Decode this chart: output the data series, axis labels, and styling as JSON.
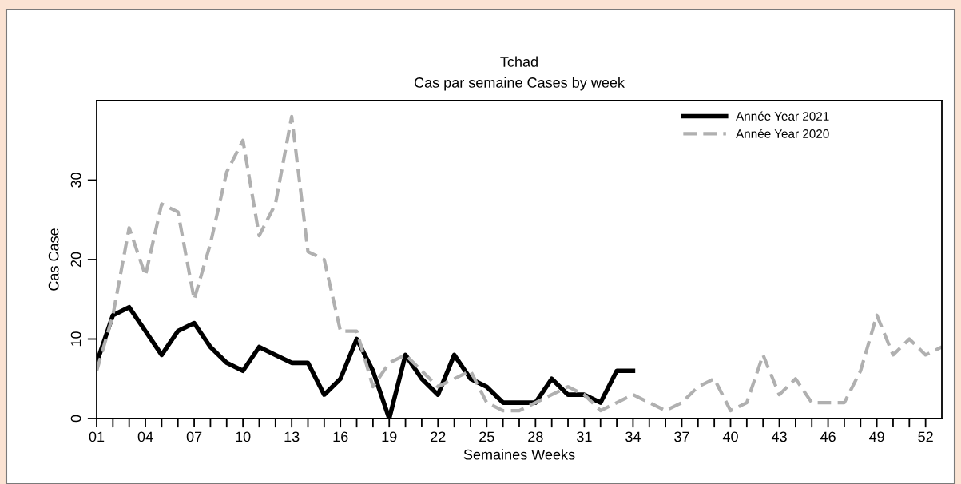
{
  "chart_data": {
    "type": "line",
    "title": "Tchad",
    "subtitle": "Cas par semaine Cases by week",
    "xlabel": "Semaines Weeks",
    "ylabel": "Cas Case",
    "x": [
      1,
      2,
      3,
      4,
      5,
      6,
      7,
      8,
      9,
      10,
      11,
      12,
      13,
      14,
      15,
      16,
      17,
      18,
      19,
      20,
      21,
      22,
      23,
      24,
      25,
      26,
      27,
      28,
      29,
      30,
      31,
      32,
      33,
      34,
      35,
      36,
      37,
      38,
      39,
      40,
      41,
      42,
      43,
      44,
      45,
      46,
      47,
      48,
      49,
      50,
      51,
      52,
      53
    ],
    "series": [
      {
        "name": "Année Year 2021",
        "color": "#000000",
        "line_style": "solid",
        "x": [
          1,
          2,
          3,
          4,
          5,
          6,
          7,
          8,
          9,
          10,
          11,
          12,
          13,
          14,
          15,
          16,
          17,
          18,
          19,
          20,
          21,
          22,
          23,
          24,
          25,
          26,
          27,
          28,
          29,
          30,
          31,
          32,
          33,
          34
        ],
        "values": [
          7,
          13,
          14,
          11,
          8,
          11,
          12,
          9,
          7,
          6,
          9,
          8,
          7,
          7,
          3,
          5,
          10,
          6,
          0,
          8,
          5,
          3,
          8,
          5,
          4,
          2,
          2,
          2,
          5,
          3,
          3,
          2,
          6,
          6
        ]
      },
      {
        "name": "Année Year 2020",
        "color": "#b0b0b0",
        "line_style": "dashed",
        "values": [
          6,
          13,
          24,
          18,
          27,
          26,
          15,
          22,
          31,
          35,
          23,
          27,
          38,
          21,
          20,
          11,
          11,
          4,
          7,
          8,
          6,
          4,
          5,
          6,
          2,
          1,
          1,
          2,
          3,
          4,
          3,
          1,
          2,
          3,
          2,
          1,
          2,
          4,
          5,
          1,
          2,
          8,
          3,
          5,
          2,
          2,
          2,
          6,
          13,
          8,
          10,
          8,
          9
        ]
      }
    ],
    "xlim": [
      1,
      53
    ],
    "ylim": [
      0,
      40
    ],
    "xticks": [
      {
        "value": 1,
        "label": "01"
      },
      {
        "value": 2,
        "label": null
      },
      {
        "value": 3,
        "label": null
      },
      {
        "value": 4,
        "label": "04"
      },
      {
        "value": 5,
        "label": null
      },
      {
        "value": 6,
        "label": null
      },
      {
        "value": 7,
        "label": "07"
      },
      {
        "value": 8,
        "label": null
      },
      {
        "value": 9,
        "label": null
      },
      {
        "value": 10,
        "label": "10"
      },
      {
        "value": 11,
        "label": null
      },
      {
        "value": 12,
        "label": null
      },
      {
        "value": 13,
        "label": "13"
      },
      {
        "value": 14,
        "label": null
      },
      {
        "value": 15,
        "label": null
      },
      {
        "value": 16,
        "label": "16"
      },
      {
        "value": 17,
        "label": null
      },
      {
        "value": 18,
        "label": null
      },
      {
        "value": 19,
        "label": "19"
      },
      {
        "value": 20,
        "label": null
      },
      {
        "value": 21,
        "label": null
      },
      {
        "value": 22,
        "label": "22"
      },
      {
        "value": 23,
        "label": null
      },
      {
        "value": 24,
        "label": null
      },
      {
        "value": 25,
        "label": "25"
      },
      {
        "value": 26,
        "label": null
      },
      {
        "value": 27,
        "label": null
      },
      {
        "value": 28,
        "label": "28"
      },
      {
        "value": 29,
        "label": null
      },
      {
        "value": 30,
        "label": null
      },
      {
        "value": 31,
        "label": "31"
      },
      {
        "value": 32,
        "label": null
      },
      {
        "value": 33,
        "label": null
      },
      {
        "value": 34,
        "label": "34"
      },
      {
        "value": 35,
        "label": null
      },
      {
        "value": 36,
        "label": null
      },
      {
        "value": 37,
        "label": "37"
      },
      {
        "value": 38,
        "label": null
      },
      {
        "value": 39,
        "label": null
      },
      {
        "value": 40,
        "label": "40"
      },
      {
        "value": 41,
        "label": null
      },
      {
        "value": 42,
        "label": null
      },
      {
        "value": 43,
        "label": "43"
      },
      {
        "value": 44,
        "label": null
      },
      {
        "value": 45,
        "label": null
      },
      {
        "value": 46,
        "label": "46"
      },
      {
        "value": 47,
        "label": null
      },
      {
        "value": 48,
        "label": null
      },
      {
        "value": 49,
        "label": "49"
      },
      {
        "value": 50,
        "label": null
      },
      {
        "value": 51,
        "label": null
      },
      {
        "value": 52,
        "label": "52"
      }
    ],
    "yticks": [
      0,
      10,
      20,
      30
    ],
    "grid": false,
    "legend": "top right",
    "marker": "none"
  }
}
